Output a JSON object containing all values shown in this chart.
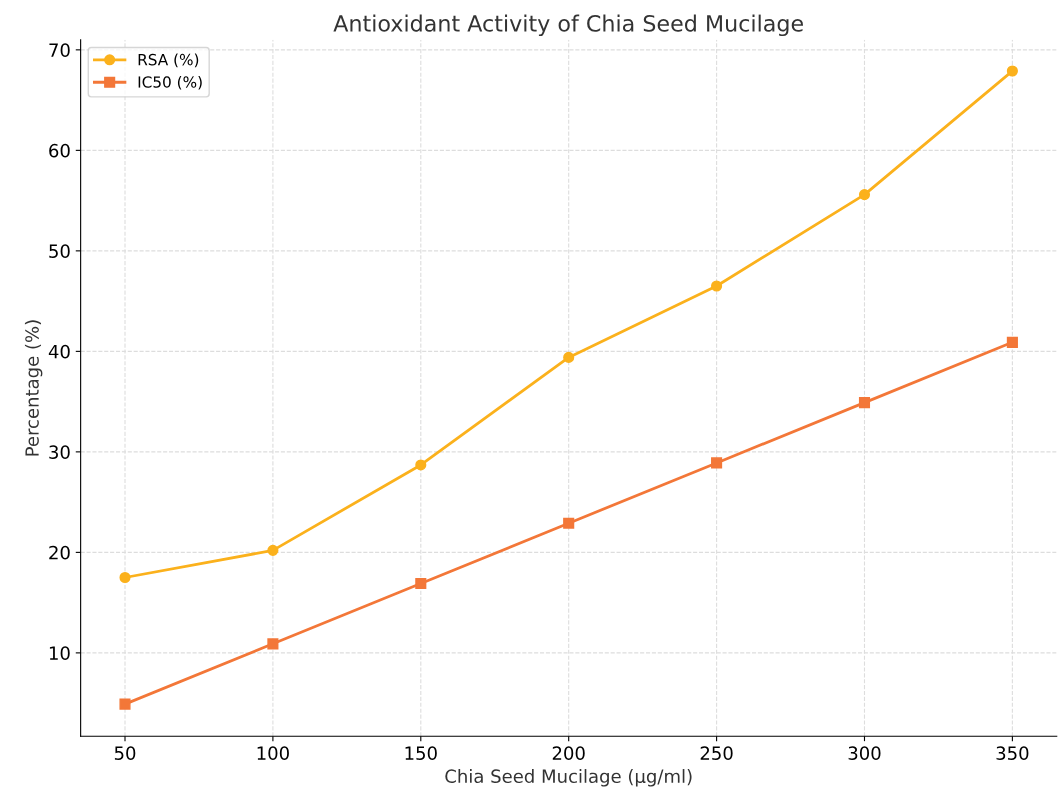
{
  "chart_data": {
    "type": "line",
    "title": "Antioxidant Activity of Chia Seed Mucilage",
    "xlabel": "Chia Seed Mucilage (µg/ml)",
    "ylabel": "Percentage (%)",
    "x": [
      50,
      100,
      150,
      200,
      250,
      300,
      350
    ],
    "series": [
      {
        "name": "RSA (%)",
        "color": "#fbb11c",
        "marker": "circle",
        "values": [
          17.5,
          20.2,
          28.7,
          39.4,
          46.5,
          55.6,
          67.9
        ]
      },
      {
        "name": "IC50 (%)",
        "color": "#f37738",
        "marker": "square",
        "values": [
          4.9,
          10.9,
          16.9,
          22.9,
          28.9,
          34.9,
          40.9
        ]
      }
    ],
    "xlim": [
      35,
      365
    ],
    "xticks": [
      50,
      100,
      150,
      200,
      250,
      300,
      350
    ],
    "ylim": [
      1.7,
      71
    ],
    "yticks": [
      10,
      20,
      30,
      40,
      50,
      60,
      70
    ],
    "grid": true,
    "legend": "top left",
    "line_style": "solid"
  }
}
